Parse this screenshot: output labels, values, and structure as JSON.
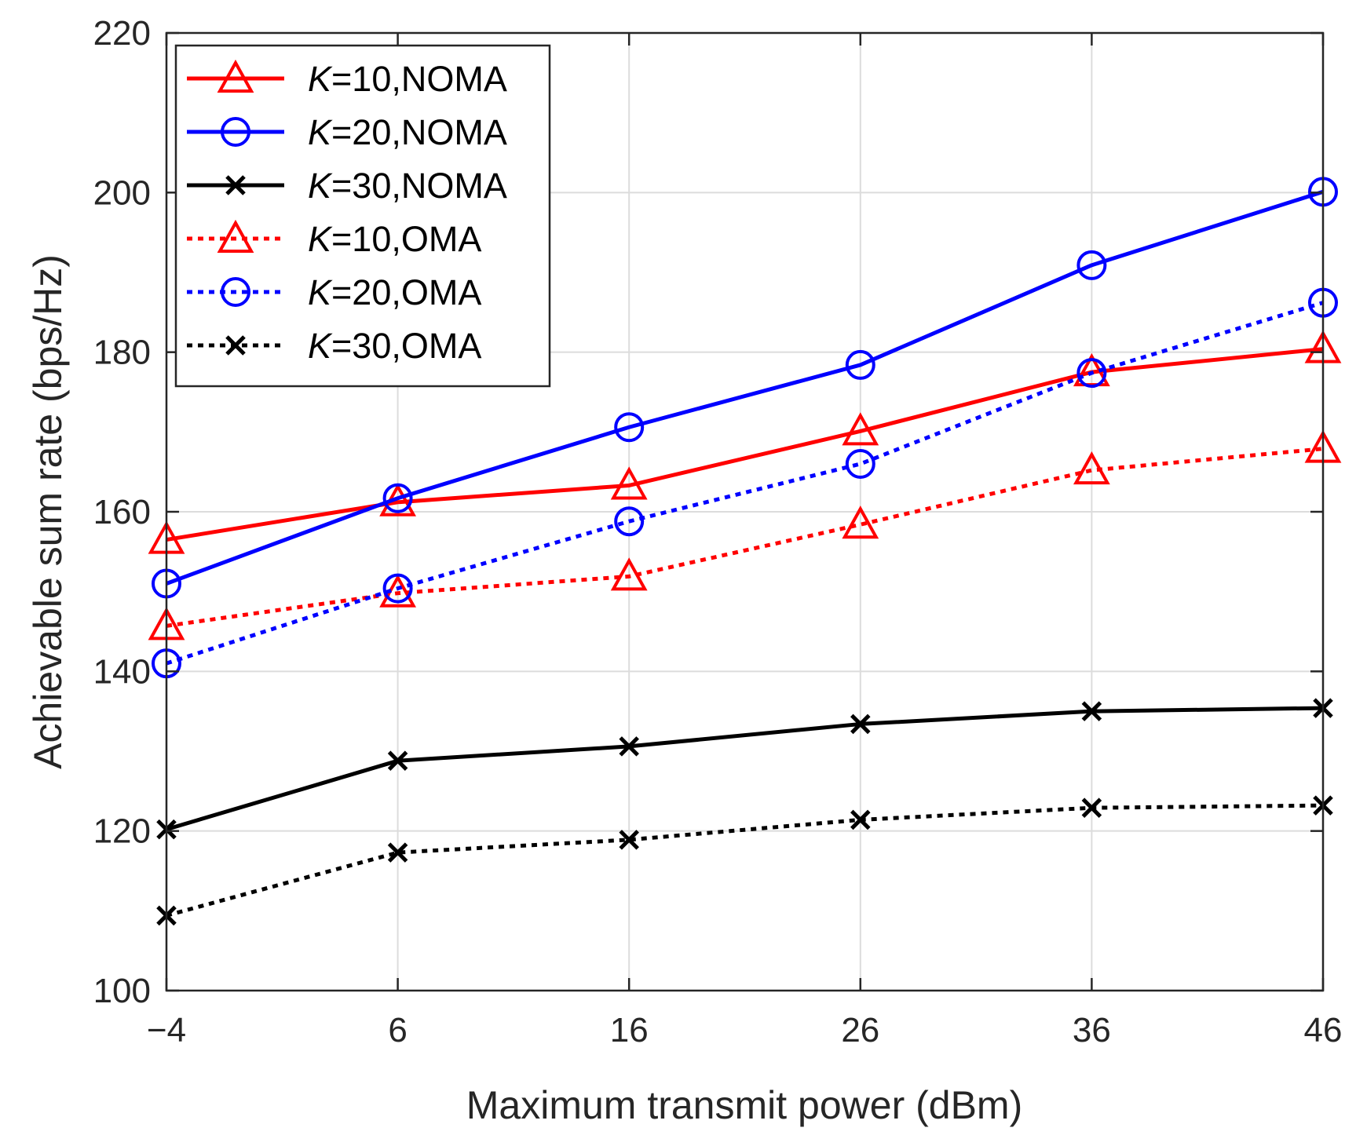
{
  "chart_data": {
    "type": "line",
    "title": "",
    "xlabel": "Maximum transmit power (dBm)",
    "ylabel": "Achievable sum rate (bps/Hz)",
    "x": [
      -4,
      6,
      16,
      26,
      36,
      46
    ],
    "x_tick_labels": [
      "−4",
      "6",
      "16",
      "26",
      "36",
      "46"
    ],
    "y_ticks": [
      100,
      120,
      140,
      160,
      180,
      200,
      220
    ],
    "y_tick_labels": [
      "100",
      "120",
      "140",
      "160",
      "180",
      "200",
      "220"
    ],
    "xlim": [
      -4,
      46
    ],
    "ylim": [
      100,
      220
    ],
    "grid": true,
    "legend_position": "top-left",
    "series": [
      {
        "name": "K=10,NOMA",
        "var": "K",
        "rest": "=10,NOMA",
        "color": "#ff0000",
        "style": "solid",
        "marker": "triangle",
        "values": [
          156.5,
          161.2,
          163.3,
          170.1,
          177.5,
          180.4
        ]
      },
      {
        "name": "K=20,NOMA",
        "var": "K",
        "rest": "=20,NOMA",
        "color": "#0000ff",
        "style": "solid",
        "marker": "circle",
        "values": [
          151.0,
          161.7,
          170.6,
          178.4,
          190.9,
          200.1
        ]
      },
      {
        "name": "K=30,NOMA",
        "var": "K",
        "rest": "=30,NOMA",
        "color": "#000000",
        "style": "solid",
        "marker": "x",
        "values": [
          120.2,
          128.8,
          130.6,
          133.4,
          135.0,
          135.4
        ]
      },
      {
        "name": "K=10,OMA",
        "var": "K",
        "rest": "=10,OMA",
        "color": "#ff0000",
        "style": "dotted",
        "marker": "triangle",
        "values": [
          145.7,
          149.8,
          151.9,
          158.4,
          165.2,
          167.9
        ]
      },
      {
        "name": "K=20,OMA",
        "var": "K",
        "rest": "=20,OMA",
        "color": "#0000ff",
        "style": "dotted",
        "marker": "circle",
        "values": [
          141.0,
          150.4,
          158.8,
          166.0,
          177.4,
          186.2
        ]
      },
      {
        "name": "K=30,OMA",
        "var": "K",
        "rest": "=30,OMA",
        "color": "#000000",
        "style": "dotted",
        "marker": "x",
        "values": [
          109.4,
          117.3,
          118.9,
          121.4,
          122.9,
          123.2
        ]
      }
    ]
  }
}
